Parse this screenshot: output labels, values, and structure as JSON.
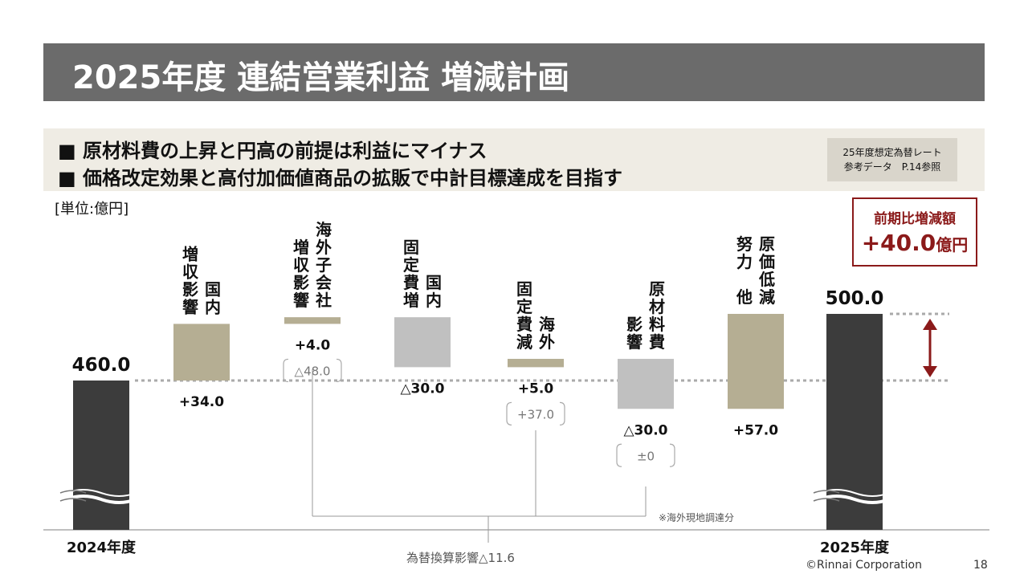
{
  "title": "2025年度 連結営業利益 増減計画",
  "bullets": [
    "■ 原材料費の上昇と円高の前提は利益にマイナス",
    "■ 価格改定効果と高付加価値商品の拡販で中計目標達成を目指す"
  ],
  "fx_reference": [
    "25年度想定為替レート",
    "参考データ　P.14参照"
  ],
  "unit_label": "[単位:億円]",
  "delta_box": {
    "label": "前期比増減額",
    "value": "+40.0",
    "unit": "億円",
    "color": "#8b1a1a"
  },
  "footnote": "※海外現地調達分",
  "fx_total": "為替換算影響△11.6",
  "copyright": "©Rinnai Corporation",
  "page_number": "18",
  "chart_data": {
    "type": "bar",
    "subtype": "waterfall",
    "unit": "億円",
    "colors": {
      "total": "#3c3c3c",
      "positive": "#b5ae93",
      "negative": "#c0c0c0",
      "bracket": "#999999",
      "arrow": "#8b1a1a"
    },
    "categories": [
      {
        "label": "2024年度",
        "kind": "total",
        "value": 460.0,
        "value_label": "460.0",
        "category_lines": [
          "2024年度"
        ]
      },
      {
        "label": "国内増収影響",
        "kind": "delta",
        "value": 34.0,
        "value_label": "+34.0",
        "vertical_cols": [
          "国内",
          "増収影響"
        ]
      },
      {
        "label": "海外子会社増収影響",
        "kind": "delta",
        "value": 4.0,
        "value_label": "+4.0",
        "sub_label": "△48.0",
        "vertical_cols": [
          "海外子会社",
          "増収影響"
        ]
      },
      {
        "label": "国内固定費増",
        "kind": "delta",
        "value": -30.0,
        "value_label": "△30.0",
        "vertical_cols": [
          "国内",
          "固定費増"
        ]
      },
      {
        "label": "海外固定費減",
        "kind": "delta",
        "value": 5.0,
        "value_label": "+5.0",
        "sub_label": "+37.0",
        "vertical_cols": [
          "海外",
          "固定費減"
        ]
      },
      {
        "label": "原材料費影響",
        "kind": "delta",
        "value": -30.0,
        "value_label": "△30.0",
        "sub_label": "±0",
        "vertical_cols": [
          "原材料費",
          "影響"
        ]
      },
      {
        "label": "原価低減努力他",
        "kind": "delta",
        "value": 57.0,
        "value_label": "+57.0",
        "vertical_cols": [
          "原価低減",
          "努力 他"
        ]
      },
      {
        "label": "2025年度",
        "kind": "total",
        "value": 500.0,
        "value_label": "500.0",
        "category_lines": [
          "2025年度"
        ]
      }
    ]
  }
}
